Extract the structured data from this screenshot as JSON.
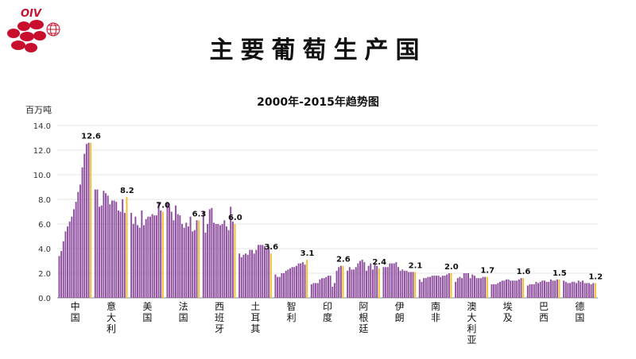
{
  "logo_text": "OIV",
  "main_title": "主要葡萄生产国",
  "chart_data": {
    "type": "bar",
    "title": "2000年-2015年趋势图",
    "ylabel": "百万吨",
    "ylim": [
      0,
      14
    ],
    "yticks": [
      "0.0",
      "2.0",
      "4.0",
      "6.0",
      "8.0",
      "10.0",
      "12.0",
      "14.0"
    ],
    "grid": true,
    "years": [
      "2000",
      "2001",
      "2002",
      "2003",
      "2004",
      "2005",
      "2006",
      "2007",
      "2008",
      "2009",
      "2010",
      "2011",
      "2012",
      "2013",
      "2014",
      "2015"
    ],
    "colors": {
      "bars": "#8e4f9f",
      "highlight": "#f2c02e"
    },
    "categories": [
      {
        "name": "中国",
        "label": "12.6",
        "values": [
          3.4,
          3.8,
          4.6,
          5.4,
          5.8,
          6.2,
          6.6,
          7.2,
          7.8,
          8.6,
          9.2,
          10.6,
          11.7,
          12.5,
          12.6,
          12.6
        ]
      },
      {
        "name": "意大利",
        "label": "8.2",
        "values": [
          8.8,
          8.8,
          7.4,
          7.5,
          8.7,
          8.5,
          8.3,
          7.6,
          7.9,
          7.9,
          7.8,
          7.1,
          7.0,
          8.0,
          6.9,
          8.2
        ]
      },
      {
        "name": "美国",
        "label": "7.0",
        "values": [
          6.9,
          6.0,
          6.6,
          5.9,
          5.7,
          7.1,
          5.9,
          6.4,
          6.6,
          6.6,
          6.8,
          6.7,
          6.7,
          7.8,
          7.1,
          7.0
        ]
      },
      {
        "name": "法国",
        "label": "6.3",
        "values": [
          7.8,
          7.4,
          7.0,
          6.3,
          7.5,
          6.8,
          6.7,
          6.0,
          5.7,
          6.1,
          5.8,
          6.6,
          5.4,
          5.5,
          6.3,
          6.3
        ]
      },
      {
        "name": "西班牙",
        "label": "6.0",
        "values": [
          7.0,
          5.3,
          6.0,
          7.2,
          7.3,
          6.1,
          6.0,
          6.0,
          5.9,
          6.0,
          6.3,
          5.8,
          5.5,
          7.4,
          6.2,
          6.0
        ]
      },
      {
        "name": "土耳其",
        "label": "3.6",
        "values": [
          3.6,
          3.3,
          3.5,
          3.6,
          3.5,
          3.9,
          3.9,
          3.6,
          3.9,
          4.3,
          4.3,
          4.3,
          4.2,
          4.0,
          4.2,
          3.6
        ]
      },
      {
        "name": "智利",
        "label": "3.1",
        "values": [
          1.9,
          1.7,
          1.7,
          2.0,
          2.0,
          2.2,
          2.3,
          2.4,
          2.5,
          2.5,
          2.6,
          2.8,
          2.8,
          2.9,
          2.7,
          3.1
        ]
      },
      {
        "name": "印度",
        "label": "2.6",
        "values": [
          1.1,
          1.2,
          1.2,
          1.2,
          1.5,
          1.6,
          1.6,
          1.7,
          1.8,
          1.8,
          0.9,
          1.2,
          2.2,
          2.5,
          2.6,
          2.6
        ]
      },
      {
        "name": "阿根廷",
        "label": "2.4",
        "values": [
          2.2,
          2.5,
          2.3,
          2.3,
          2.5,
          2.8,
          3.0,
          3.1,
          2.9,
          2.2,
          2.6,
          2.8,
          2.3,
          2.8,
          2.6,
          2.4
        ]
      },
      {
        "name": "伊朗",
        "label": "2.1",
        "values": [
          2.5,
          2.5,
          2.5,
          2.8,
          2.8,
          2.8,
          2.9,
          2.5,
          2.2,
          2.3,
          2.2,
          2.2,
          2.1,
          2.1,
          2.1,
          2.1
        ]
      },
      {
        "name": "南非",
        "label": "2.0",
        "values": [
          1.5,
          1.3,
          1.6,
          1.6,
          1.7,
          1.7,
          1.8,
          1.8,
          1.8,
          1.8,
          1.7,
          1.8,
          1.8,
          1.9,
          2.0,
          2.0
        ]
      },
      {
        "name": "澳大利亚",
        "label": "1.7",
        "values": [
          1.3,
          1.6,
          1.7,
          1.6,
          2.0,
          2.0,
          2.0,
          1.6,
          1.9,
          1.8,
          1.6,
          1.6,
          1.6,
          1.7,
          1.7,
          1.7
        ]
      },
      {
        "name": "埃及",
        "label": "1.6",
        "values": [
          1.1,
          1.1,
          1.1,
          1.2,
          1.3,
          1.4,
          1.4,
          1.5,
          1.5,
          1.4,
          1.4,
          1.4,
          1.4,
          1.5,
          1.6,
          1.6
        ]
      },
      {
        "name": "巴西",
        "label": "1.5",
        "values": [
          1.0,
          1.1,
          1.1,
          1.1,
          1.3,
          1.2,
          1.3,
          1.4,
          1.4,
          1.3,
          1.3,
          1.5,
          1.4,
          1.4,
          1.5,
          1.5
        ]
      },
      {
        "name": "德国",
        "label": "1.2",
        "values": [
          1.4,
          1.3,
          1.2,
          1.2,
          1.3,
          1.3,
          1.2,
          1.4,
          1.3,
          1.4,
          1.2,
          1.2,
          1.2,
          1.1,
          1.2,
          1.2
        ]
      }
    ]
  }
}
